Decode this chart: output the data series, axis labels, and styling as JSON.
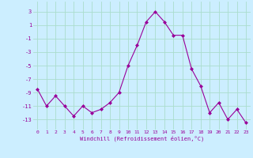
{
  "x": [
    0,
    1,
    2,
    3,
    4,
    5,
    6,
    7,
    8,
    9,
    10,
    11,
    12,
    13,
    14,
    15,
    16,
    17,
    18,
    19,
    20,
    21,
    22,
    23
  ],
  "y": [
    -8.5,
    -11,
    -9.5,
    -11,
    -12.5,
    -11,
    -12,
    -11.5,
    -10.5,
    -9,
    -5,
    -2,
    1.5,
    3,
    1.5,
    -0.5,
    -0.5,
    -5.5,
    -8,
    -12,
    -10.5,
    -13,
    -11.5,
    -13.5
  ],
  "line_color": "#990099",
  "marker_color": "#990099",
  "bg_color": "#cceeff",
  "grid_color": "#aaddcc",
  "xlabel": "Windchill (Refroidissement éolien,°C)",
  "xlabel_color": "#990099",
  "yticks": [
    3,
    1,
    -1,
    -3,
    -5,
    -7,
    -9,
    -11,
    -13
  ],
  "xticks": [
    0,
    1,
    2,
    3,
    4,
    5,
    6,
    7,
    8,
    9,
    10,
    11,
    12,
    13,
    14,
    15,
    16,
    17,
    18,
    19,
    20,
    21,
    22,
    23
  ],
  "ylim": [
    -14.5,
    4.5
  ],
  "xlim": [
    -0.5,
    23.5
  ]
}
